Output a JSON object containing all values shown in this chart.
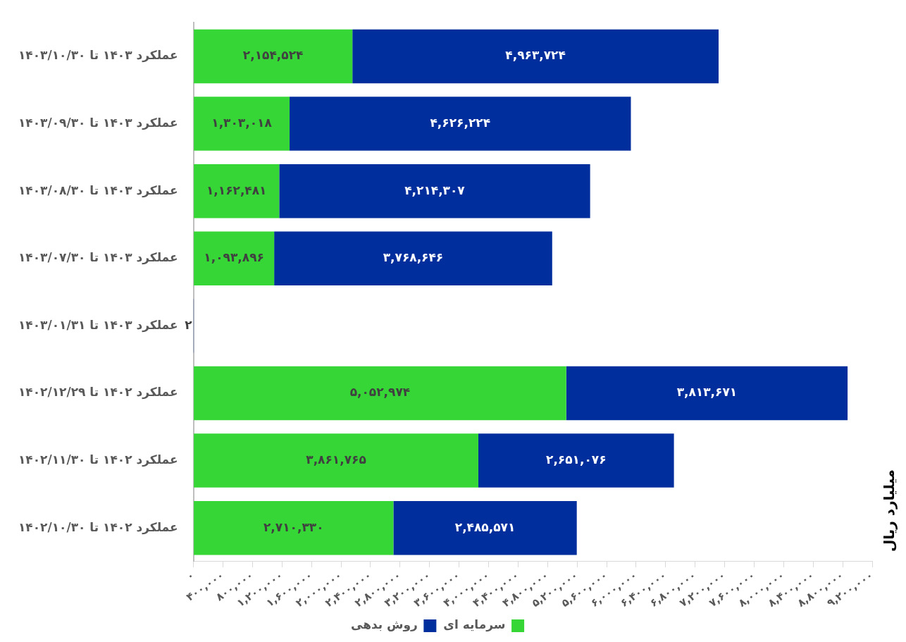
{
  "chart_data": {
    "type": "bar",
    "orientation": "horizontal",
    "stacked": true,
    "ylabel": "میلیارد ریال",
    "categories": [
      "عملکرد ۱۴۰۳ تا ۱۴۰۳/۱۰/۳۰",
      "عملکرد ۱۴۰۳ تا ۱۴۰۳/۰۹/۳۰",
      "عملکرد ۱۴۰۳ تا ۱۴۰۳/۰۸/۳۰",
      "عملکرد ۱۴۰۳ تا ۱۴۰۳/۰۷/۳۰",
      "عملکرد ۱۴۰۳ تا ۱۴۰۳/۰۱/۳۱",
      "عملکرد ۱۴۰۲ تا ۱۴۰۲/۱۲/۲۹",
      "عملکرد ۱۴۰۲ تا ۱۴۰۲/۱۱/۳۰",
      "عملکرد ۱۴۰۲ تا ۱۴۰۲/۱۰/۳۰"
    ],
    "series": [
      {
        "name": "سرمایه ای",
        "color": "#36d636",
        "values": [
          2154524,
          1303018,
          1162481,
          1093896,
          null,
          5052974,
          3861765,
          2710330
        ],
        "value_labels": [
          "۲,۱۵۴,۵۲۴",
          "۱,۳۰۳,۰۱۸",
          "۱,۱۶۲,۴۸۱",
          "۱,۰۹۳,۸۹۶",
          null,
          "۵,۰۵۲,۹۷۴",
          "۳,۸۶۱,۷۶۵",
          "۲,۷۱۰,۳۳۰"
        ]
      },
      {
        "name": "روش بدهی",
        "color": "#002e9c",
        "values": [
          4963724,
          4626224,
          4214307,
          3768646,
          2,
          3813671,
          2651076,
          2485571
        ],
        "value_labels": [
          "۴,۹۶۳,۷۲۴",
          "۴,۶۲۶,۲۲۴",
          "۴,۲۱۴,۳۰۷",
          "۳,۷۶۸,۶۴۶",
          "۲",
          "۳,۸۱۳,۶۷۱",
          "۲,۶۵۱,۰۷۶",
          "۲,۴۸۵,۵۷۱"
        ]
      }
    ],
    "xlim": [
      0,
      9200000
    ],
    "xticks": [
      {
        "value": 0,
        "label": "۰"
      },
      {
        "value": 400000,
        "label": "۴۰۰,۰۰۰"
      },
      {
        "value": 800000,
        "label": "۸۰۰,۰۰۰"
      },
      {
        "value": 1200000,
        "label": "۱,۲۰۰,۰۰۰"
      },
      {
        "value": 1600000,
        "label": "۱,۶۰۰,۰۰۰"
      },
      {
        "value": 2000000,
        "label": "۲,۰۰۰,۰۰۰"
      },
      {
        "value": 2400000,
        "label": "۲,۴۰۰,۰۰۰"
      },
      {
        "value": 2800000,
        "label": "۲,۸۰۰,۰۰۰"
      },
      {
        "value": 3200000,
        "label": "۳,۲۰۰,۰۰۰"
      },
      {
        "value": 3600000,
        "label": "۳,۶۰۰,۰۰۰"
      },
      {
        "value": 4000000,
        "label": "۴,۰۰۰,۰۰۰"
      },
      {
        "value": 4400000,
        "label": "۴,۴۰۰,۰۰۰"
      },
      {
        "value": 4800000,
        "label": "۴,۸۰۰,۰۰۰"
      },
      {
        "value": 5200000,
        "label": "۵,۲۰۰,۰۰۰"
      },
      {
        "value": 5600000,
        "label": "۵,۶۰۰,۰۰۰"
      },
      {
        "value": 6000000,
        "label": "۶,۰۰۰,۰۰۰"
      },
      {
        "value": 6400000,
        "label": "۶,۴۰۰,۰۰۰"
      },
      {
        "value": 6800000,
        "label": "۶,۸۰۰,۰۰۰"
      },
      {
        "value": 7200000,
        "label": "۷,۲۰۰,۰۰۰"
      },
      {
        "value": 7600000,
        "label": "۷,۶۰۰,۰۰۰"
      },
      {
        "value": 8000000,
        "label": "۸,۰۰۰,۰۰۰"
      },
      {
        "value": 8400000,
        "label": "۸,۴۰۰,۰۰۰"
      },
      {
        "value": 8800000,
        "label": "۸,۸۰۰,۰۰۰"
      },
      {
        "value": 9200000,
        "label": "۹,۲۰۰,۰۰۰"
      }
    ],
    "legend": "bottom",
    "grid": false
  }
}
